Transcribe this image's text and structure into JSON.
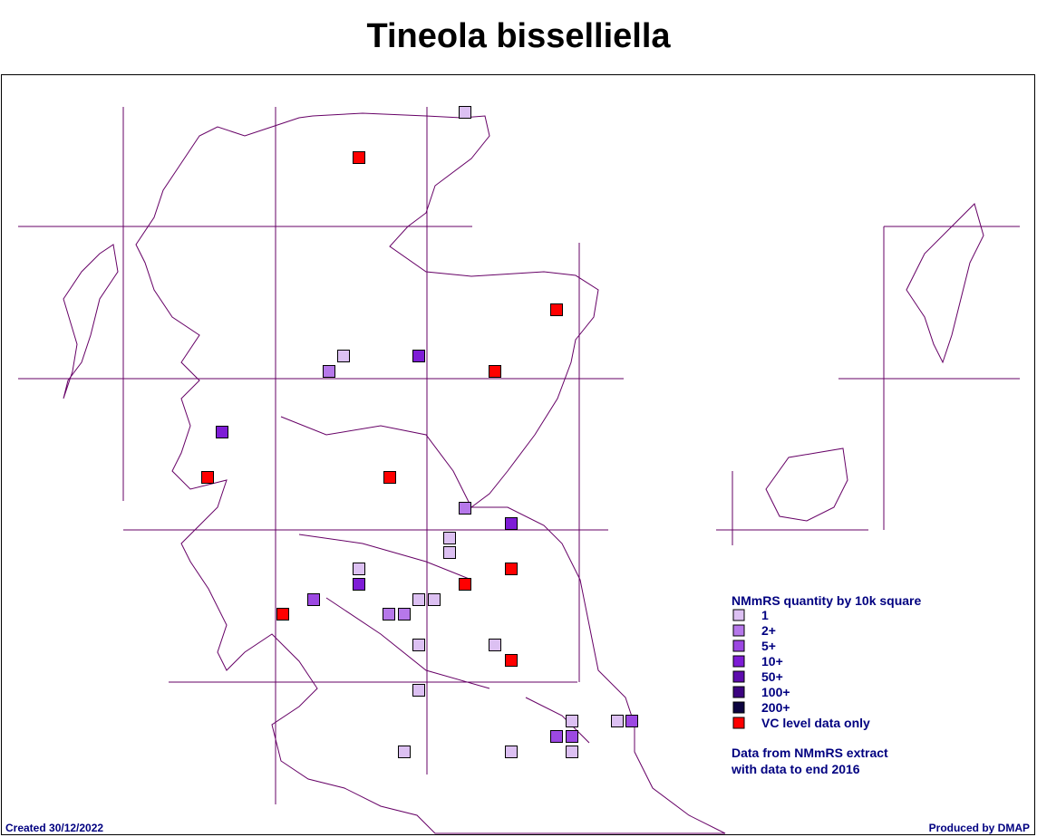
{
  "title": "Tineola bisselliella",
  "legend": {
    "title": "NMmRS quantity by 10k square",
    "items": [
      {
        "label": "1",
        "color": "#dcc0f2"
      },
      {
        "label": "2+",
        "color": "#b678ea"
      },
      {
        "label": "5+",
        "color": "#9c48e2"
      },
      {
        "label": "10+",
        "color": "#7e1cd6"
      },
      {
        "label": "50+",
        "color": "#5e0cae"
      },
      {
        "label": "100+",
        "color": "#3c0480"
      },
      {
        "label": "200+",
        "color": "#0c0440"
      },
      {
        "label": "VC level data only",
        "color": "#ff0000"
      }
    ]
  },
  "note": [
    "Data from NMmRS extract",
    "with data to end 2016"
  ],
  "footer": {
    "created": "Created 30/12/2022",
    "produced": "Produced by DMAP"
  }
}
